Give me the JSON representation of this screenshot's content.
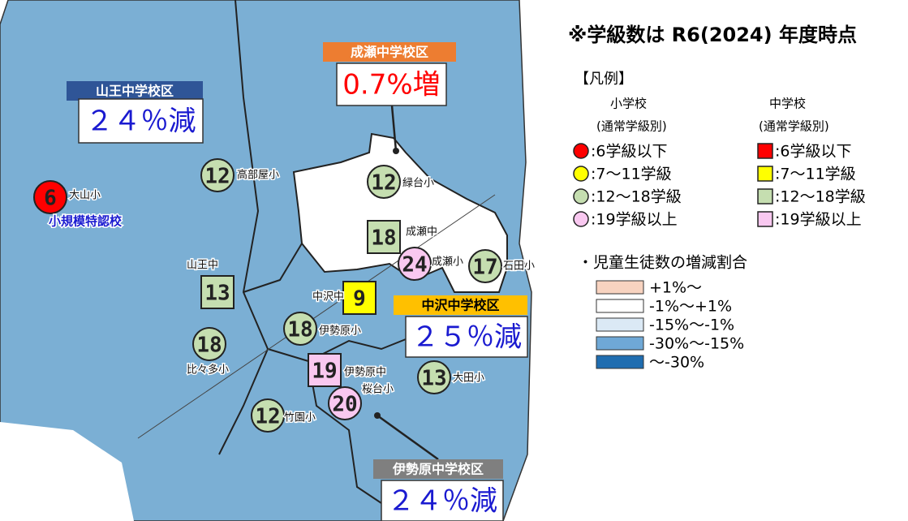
{
  "note": "※学級数は R6(2024) 年度時点",
  "legend": {
    "title": "【凡例】",
    "elementary": {
      "title": "小学校",
      "subtitle": "(通常学級別)"
    },
    "middle": {
      "title": "中学校",
      "subtitle": "(通常学級別)"
    },
    "classes": [
      {
        "label": ":6学級以下",
        "color": "#ff0000"
      },
      {
        "label": ":7～11学級",
        "color": "#ffff00"
      },
      {
        "label": ":12～18学級",
        "color": "#c5deb0"
      },
      {
        "label": ":19学級以上",
        "color": "#f9c8f0"
      }
    ],
    "change_title": "・児童生徒数の増減割合",
    "change": [
      {
        "label": "+1%～",
        "color": "#f8d3c0"
      },
      {
        "label": "-1%～+1%",
        "color": "#ffffff"
      },
      {
        "label": "-15%～-1%",
        "color": "#dbe9f5"
      },
      {
        "label": "-30%～-15%",
        "color": "#6fa8d6"
      },
      {
        "label": "～-30%",
        "color": "#1f6db0"
      }
    ]
  },
  "districts": [
    {
      "name": "山王中学校区",
      "change": "２４％減",
      "header_color": "#2f5597",
      "text_color": "#1a1ad0"
    },
    {
      "name": "成瀬中学校区",
      "change": "0.7%増",
      "header_color": "#ed7d31",
      "text_color": "#ff0000"
    },
    {
      "name": "中沢中学校区",
      "change": "２５％減",
      "header_color": "#ffc000",
      "text_color": "#1a1ad0"
    },
    {
      "name": "伊勢原中学校区",
      "change": "２４％減",
      "header_color": "#7f7f7f",
      "text_color": "#1a1ad0"
    }
  ],
  "special_note": "小規模特認校",
  "schools": [
    {
      "count": 6,
      "name": "大山小",
      "shape": "circle",
      "color": "#ff0000"
    },
    {
      "count": 12,
      "name": "高部屋小",
      "shape": "circle",
      "color": "#c5deb0"
    },
    {
      "count": 12,
      "name": "緑台小",
      "shape": "circle",
      "color": "#c5deb0"
    },
    {
      "count": 18,
      "name": "成瀬中",
      "shape": "square",
      "color": "#c5deb0"
    },
    {
      "count": 24,
      "name": "成瀬小",
      "shape": "circle",
      "color": "#f9c8f0"
    },
    {
      "count": 17,
      "name": "石田小",
      "shape": "circle",
      "color": "#c5deb0"
    },
    {
      "count": 13,
      "name": "山王中",
      "shape": "square",
      "color": "#c5deb0"
    },
    {
      "count": 9,
      "name": "中沢中",
      "shape": "square",
      "color": "#ffff00"
    },
    {
      "count": 18,
      "name": "伊勢原小",
      "shape": "circle",
      "color": "#c5deb0"
    },
    {
      "count": 18,
      "name": "比々多小",
      "shape": "circle",
      "color": "#c5deb0"
    },
    {
      "count": 19,
      "name": "伊勢原中",
      "shape": "square",
      "color": "#f9c8f0"
    },
    {
      "count": 13,
      "name": "大田小",
      "shape": "circle",
      "color": "#c5deb0"
    },
    {
      "count": 20,
      "name": "桜台小",
      "shape": "circle",
      "color": "#f9c8f0"
    },
    {
      "count": 12,
      "name": "竹園小",
      "shape": "circle",
      "color": "#c5deb0"
    }
  ]
}
